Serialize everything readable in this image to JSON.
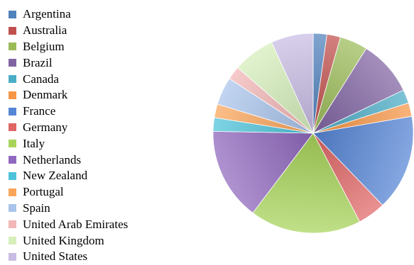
{
  "chart_data": {
    "type": "pie",
    "title": "",
    "legend_position": "left",
    "start_angle": "top, clockwise",
    "style": "3d-shaded",
    "slices": [
      {
        "label": "Argentina",
        "value": 2.2,
        "color": "#4f81bd"
      },
      {
        "label": "Australia",
        "value": 2.2,
        "color": "#c0504d"
      },
      {
        "label": "Belgium",
        "value": 4.5,
        "color": "#9bbb59"
      },
      {
        "label": "Brazil",
        "value": 9.0,
        "color": "#8064a2"
      },
      {
        "label": "Canada",
        "value": 2.2,
        "color": "#4bacc6"
      },
      {
        "label": "Denmark",
        "value": 2.2,
        "color": "#f79646"
      },
      {
        "label": "France",
        "value": 15.5,
        "color": "#5585d6"
      },
      {
        "label": "Germany",
        "value": 4.5,
        "color": "#e06666"
      },
      {
        "label": "Italy",
        "value": 18.0,
        "color": "#a8d45a"
      },
      {
        "label": "Netherlands",
        "value": 15.0,
        "color": "#9068be"
      },
      {
        "label": "New Zealand",
        "value": 2.2,
        "color": "#4cc3d9"
      },
      {
        "label": "Portugal",
        "value": 2.2,
        "color": "#fba55a"
      },
      {
        "label": "Spain",
        "value": 4.5,
        "color": "#a9c4eb"
      },
      {
        "label": "United Arab Emirates",
        "value": 2.2,
        "color": "#f2b6b6"
      },
      {
        "label": "United Kingdom",
        "value": 6.8,
        "color": "#d6efbb"
      },
      {
        "label": "United States",
        "value": 6.8,
        "color": "#c8bce3"
      }
    ]
  }
}
